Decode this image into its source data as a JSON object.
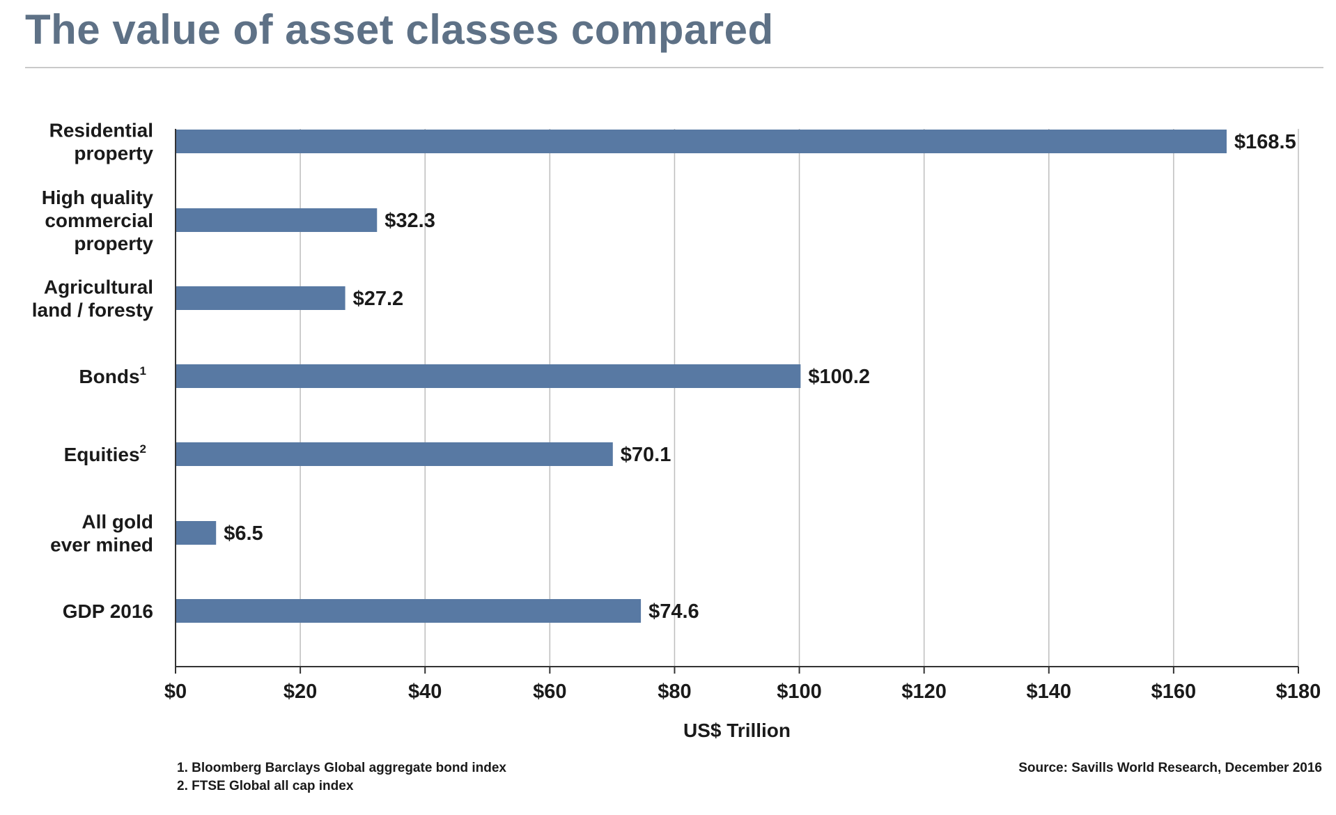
{
  "page": {
    "title": "The value of asset classes compared"
  },
  "chart_data": {
    "type": "bar",
    "orientation": "horizontal",
    "title": "The value of asset classes compared",
    "xlabel": "US$ Trillion",
    "ylabel": "",
    "xlim": [
      0,
      180
    ],
    "x_ticks": [
      0,
      20,
      40,
      60,
      80,
      100,
      120,
      140,
      160,
      180
    ],
    "x_tick_labels": [
      "$0",
      "$20",
      "$40",
      "$60",
      "$80",
      "$100",
      "$120",
      "$140",
      "$160",
      "$180"
    ],
    "grid": "vertical",
    "bar_color": "#5879a3",
    "categories": [
      {
        "lines": [
          "Residential",
          "property"
        ],
        "sup": ""
      },
      {
        "lines": [
          "High quality",
          "commercial",
          "property"
        ],
        "sup": ""
      },
      {
        "lines": [
          "Agricultural",
          "land / foresty"
        ],
        "sup": ""
      },
      {
        "lines": [
          "Bonds"
        ],
        "sup": "1"
      },
      {
        "lines": [
          "Equities"
        ],
        "sup": "2"
      },
      {
        "lines": [
          "All gold",
          "ever mined"
        ],
        "sup": ""
      },
      {
        "lines": [
          "GDP 2016"
        ],
        "sup": ""
      }
    ],
    "values": [
      168.5,
      32.3,
      27.2,
      100.2,
      70.1,
      6.5,
      74.6
    ],
    "value_labels": [
      "$168.5",
      "$32.3",
      "$27.2",
      "$100.2",
      "$70.1",
      "$6.5",
      "$74.6"
    ]
  },
  "footnotes": {
    "note1": "1. Bloomberg Barclays Global aggregate bond index",
    "note2": "2. FTSE Global all cap index",
    "source": "Source: Savills World Research, December 2016"
  }
}
